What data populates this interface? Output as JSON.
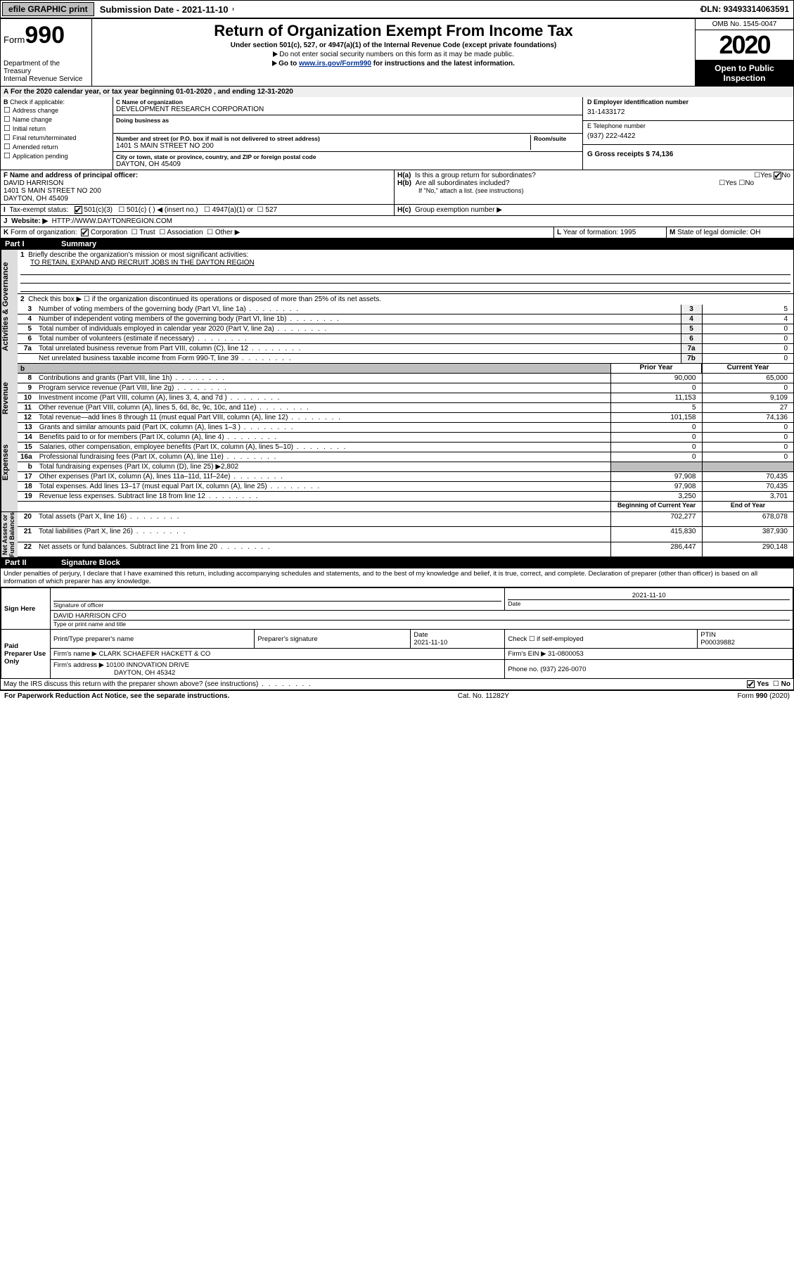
{
  "topbar": {
    "efile": "efile GRAPHIC print",
    "submission": "Submission Date - 2021-11-10",
    "dln": "DLN: 93493314063591"
  },
  "header": {
    "form_prefix": "Form",
    "form_num": "990",
    "dept": "Department of the Treasury\nInternal Revenue Service",
    "title": "Return of Organization Exempt From Income Tax",
    "subtitle": "Under section 501(c), 527, or 4947(a)(1) of the Internal Revenue Code (except private foundations)",
    "note1": "Do not enter social security numbers on this form as it may be made public.",
    "note2_pre": "Go to ",
    "note2_link": "www.irs.gov/Form990",
    "note2_post": " for instructions and the latest information.",
    "omb": "OMB No. 1545-0047",
    "year": "2020",
    "open": "Open to Public Inspection"
  },
  "period": {
    "line": "For the 2020 calendar year, or tax year beginning 01-01-2020   , and ending 12-31-2020"
  },
  "blockB": {
    "label": "Check if applicable:",
    "opts": [
      "Address change",
      "Name change",
      "Initial return",
      "Final return/terminated",
      "Amended return",
      "Application pending"
    ]
  },
  "blockC": {
    "name_lab": "C Name of organization",
    "name_val": "DEVELOPMENT RESEARCH CORPORATION",
    "dba_lab": "Doing business as",
    "addr_lab": "Number and street (or P.O. box if mail is not delivered to street address)",
    "room_lab": "Room/suite",
    "addr_val": "1401 S MAIN STREET NO 200",
    "city_lab": "City or town, state or province, country, and ZIP or foreign postal code",
    "city_val": "DAYTON, OH  45409"
  },
  "blockD": {
    "ein_lab": "D Employer identification number",
    "ein_val": "31-1433172",
    "tel_lab": "E Telephone number",
    "tel_val": "(937) 222-4422",
    "gross_lab": "G Gross receipts $ 74,136"
  },
  "blockF": {
    "lab": "F  Name and address of principal officer:",
    "lines": [
      "DAVID HARRISON",
      "1401 S MAIN STREET NO 200",
      "DAYTON, OH  45409"
    ]
  },
  "blockH": {
    "a": "Is this a group return for subordinates?",
    "b": "Are all subordinates included?",
    "b_note": "If \"No,\" attach a list. (see instructions)",
    "c": "Group exemption number ▶",
    "yes": "Yes",
    "no": "No"
  },
  "blockI": {
    "lab": "Tax-exempt status:",
    "opts": [
      "501(c)(3)",
      "501(c) (  ) ◀ (insert no.)",
      "4947(a)(1) or",
      "527"
    ]
  },
  "blockJ": {
    "lab": "Website: ▶",
    "val": "HTTP://WWW.DAYTONREGION.COM"
  },
  "blockK": {
    "lab": "Form of organization:",
    "opts": [
      "Corporation",
      "Trust",
      "Association",
      "Other ▶"
    ]
  },
  "blockL": {
    "lab": "Year of formation: 1995"
  },
  "blockM": {
    "lab": "State of legal domicile: OH"
  },
  "partI": {
    "title_p": "Part I",
    "title_s": "Summary"
  },
  "summary": {
    "l1_lab": "Briefly describe the organization's mission or most significant activities:",
    "l1_val": "TO RETAIN, EXPAND AND RECRUIT JOBS IN THE DAYTON REGION",
    "l2": "Check this box ▶ ☐  if the organization discontinued its operations or disposed of more than 25% of its net assets.",
    "lines_gov": [
      {
        "n": "3",
        "t": "Number of voting members of the governing body (Part VI, line 1a)",
        "box": "3",
        "v": "5"
      },
      {
        "n": "4",
        "t": "Number of independent voting members of the governing body (Part VI, line 1b)",
        "box": "4",
        "v": "4"
      },
      {
        "n": "5",
        "t": "Total number of individuals employed in calendar year 2020 (Part V, line 2a)",
        "box": "5",
        "v": "0"
      },
      {
        "n": "6",
        "t": "Total number of volunteers (estimate if necessary)",
        "box": "6",
        "v": "0"
      },
      {
        "n": "7a",
        "t": "Total unrelated business revenue from Part VIII, column (C), line 12",
        "box": "7a",
        "v": "0"
      },
      {
        "n": "",
        "t": "Net unrelated business taxable income from Form 990-T, line 39",
        "box": "7b",
        "v": "0"
      }
    ],
    "hdr_prior": "Prior Year",
    "hdr_curr": "Current Year",
    "rev": [
      {
        "n": "8",
        "t": "Contributions and grants (Part VIII, line 1h)",
        "p": "90,000",
        "c": "65,000"
      },
      {
        "n": "9",
        "t": "Program service revenue (Part VIII, line 2g)",
        "p": "0",
        "c": "0"
      },
      {
        "n": "10",
        "t": "Investment income (Part VIII, column (A), lines 3, 4, and 7d )",
        "p": "11,153",
        "c": "9,109"
      },
      {
        "n": "11",
        "t": "Other revenue (Part VIII, column (A), lines 5, 6d, 8c, 9c, 10c, and 11e)",
        "p": "5",
        "c": "27"
      },
      {
        "n": "12",
        "t": "Total revenue—add lines 8 through 11 (must equal Part VIII, column (A), line 12)",
        "p": "101,158",
        "c": "74,136"
      }
    ],
    "exp": [
      {
        "n": "13",
        "t": "Grants and similar amounts paid (Part IX, column (A), lines 1–3 )",
        "p": "0",
        "c": "0"
      },
      {
        "n": "14",
        "t": "Benefits paid to or for members (Part IX, column (A), line 4)",
        "p": "0",
        "c": "0"
      },
      {
        "n": "15",
        "t": "Salaries, other compensation, employee benefits (Part IX, column (A), lines 5–10)",
        "p": "0",
        "c": "0"
      },
      {
        "n": "16a",
        "t": "Professional fundraising fees (Part IX, column (A), line 11e)",
        "p": "0",
        "c": "0"
      },
      {
        "n": "b",
        "t": "Total fundraising expenses (Part IX, column (D), line 25) ▶2,802",
        "p": "",
        "c": "",
        "grey": true
      },
      {
        "n": "17",
        "t": "Other expenses (Part IX, column (A), lines 11a–11d, 11f–24e)",
        "p": "97,908",
        "c": "70,435"
      },
      {
        "n": "18",
        "t": "Total expenses. Add lines 13–17 (must equal Part IX, column (A), line 25)",
        "p": "97,908",
        "c": "70,435"
      },
      {
        "n": "19",
        "t": "Revenue less expenses. Subtract line 18 from line 12",
        "p": "3,250",
        "c": "3,701"
      }
    ],
    "hdr_beg": "Beginning of Current Year",
    "hdr_end": "End of Year",
    "net": [
      {
        "n": "20",
        "t": "Total assets (Part X, line 16)",
        "p": "702,277",
        "c": "678,078"
      },
      {
        "n": "21",
        "t": "Total liabilities (Part X, line 26)",
        "p": "415,830",
        "c": "387,930"
      },
      {
        "n": "22",
        "t": "Net assets or fund balances. Subtract line 21 from line 20",
        "p": "286,447",
        "c": "290,148"
      }
    ]
  },
  "sides": {
    "gov": "Activities & Governance",
    "rev": "Revenue",
    "exp": "Expenses",
    "net": "Net Assets or\nFund Balances"
  },
  "partII": {
    "title_p": "Part II",
    "title_s": "Signature Block",
    "decl": "Under penalties of perjury, I declare that I have examined this return, including accompanying schedules and statements, and to the best of my knowledge and belief, it is true, correct, and complete. Declaration of preparer (other than officer) is based on all information of which preparer has any knowledge."
  },
  "sign": {
    "here": "Sign Here",
    "sig_officer": "Signature of officer",
    "date_lab": "Date",
    "date": "2021-11-10",
    "name": "DAVID HARRISON  CFO",
    "name_lab": "Type or print name and title",
    "paid": "Paid Preparer Use Only",
    "prep_name_lab": "Print/Type preparer's name",
    "prep_sig_lab": "Preparer's signature",
    "prep_date_lab": "Date",
    "prep_date": "2021-11-10",
    "check_lab": "Check ☐ if self-employed",
    "ptin_lab": "PTIN",
    "ptin": "P00039882",
    "firm_name_lab": "Firm's name   ▶",
    "firm_name": "CLARK SCHAEFER HACKETT & CO",
    "firm_ein_lab": "Firm's EIN ▶",
    "firm_ein": "31-0800053",
    "firm_addr_lab": "Firm's address ▶",
    "firm_addr": "10100 INNOVATION DRIVE",
    "firm_city": "DAYTON, OH  45342",
    "phone_lab": "Phone no.",
    "phone": "(937) 226-0070",
    "discuss": "May the IRS discuss this return with the preparer shown above? (see instructions)"
  },
  "footer": {
    "pra": "For Paperwork Reduction Act Notice, see the separate instructions.",
    "cat": "Cat. No. 11282Y",
    "form": "Form 990 (2020)"
  }
}
